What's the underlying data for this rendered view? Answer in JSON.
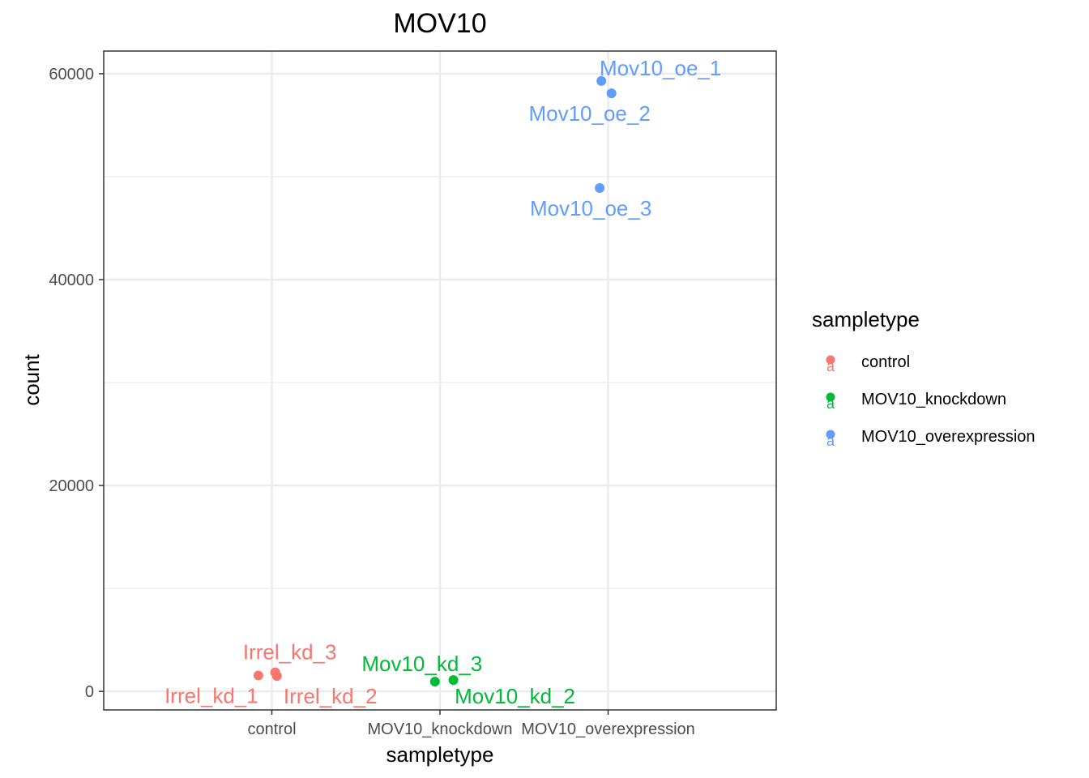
{
  "chart_data": {
    "type": "scatter",
    "title": "MOV10",
    "xlabel": "sampletype",
    "ylabel": "count",
    "categories": [
      "control",
      "MOV10_knockdown",
      "MOV10_overexpression"
    ],
    "ylim": [
      -1800,
      62200
    ],
    "yticks": [
      0,
      20000,
      40000,
      60000
    ],
    "ytick_labels": [
      "0",
      "20000",
      "40000",
      "60000"
    ],
    "grid": true,
    "legend": {
      "title": "sampletype",
      "position": "right"
    },
    "series": [
      {
        "name": "control",
        "color": "#F8766D",
        "points": [
          {
            "category": "control",
            "jitter": -0.08,
            "y": 1550,
            "label": "Irrel_kd_1"
          },
          {
            "category": "control",
            "jitter": 0.03,
            "y": 1500,
            "label": "Irrel_kd_2"
          },
          {
            "category": "control",
            "jitter": 0.02,
            "y": 1850,
            "label": "Irrel_kd_3"
          }
        ]
      },
      {
        "name": "MOV10_knockdown",
        "color": "#00BA38",
        "points": [
          {
            "category": "MOV10_knockdown",
            "jitter": 0.08,
            "y": 1100,
            "label": "Mov10_kd_2"
          },
          {
            "category": "MOV10_knockdown",
            "jitter": -0.03,
            "y": 950,
            "label": "Mov10_kd_3"
          }
        ]
      },
      {
        "name": "MOV10_overexpression",
        "color": "#619CFF",
        "points": [
          {
            "category": "MOV10_overexpression",
            "jitter": -0.04,
            "y": 59300,
            "label": "Mov10_oe_1"
          },
          {
            "category": "MOV10_overexpression",
            "jitter": 0.02,
            "y": 58100,
            "label": "Mov10_oe_2"
          },
          {
            "category": "MOV10_overexpression",
            "jitter": -0.05,
            "y": 48900,
            "label": "Mov10_oe_3"
          }
        ]
      }
    ]
  }
}
